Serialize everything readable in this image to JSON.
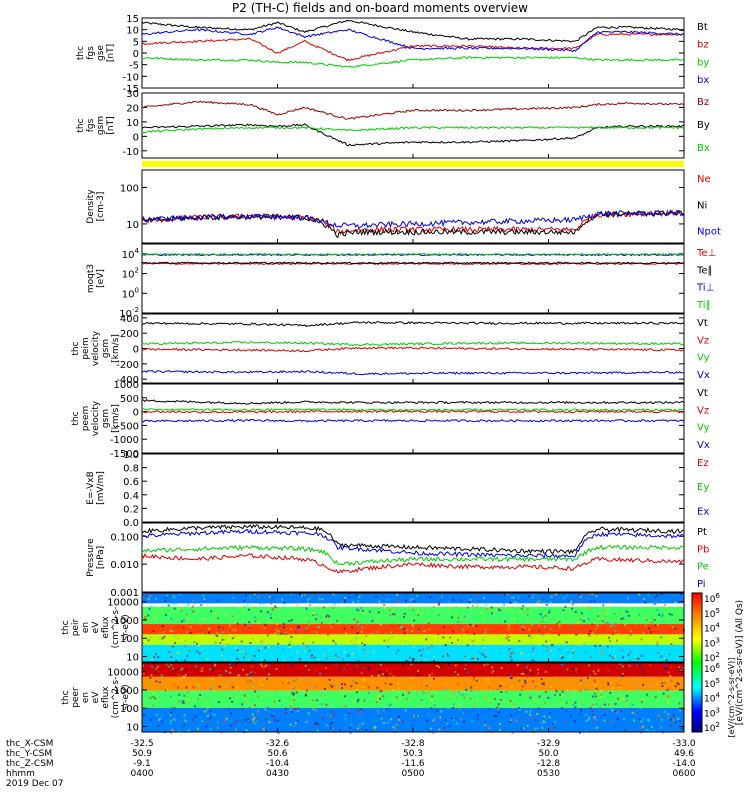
{
  "title": "P2 (TH-C) fields and on-board moments overview",
  "xaxis": {
    "row_labels": [
      "thc_X-CSM",
      "thc_Y-CSM",
      "thc_Z-CSM",
      "hhmm",
      "2019 Dec 07"
    ],
    "ticks": [
      {
        "x": "-32.5",
        "y": "50.9",
        "z": "-9.1",
        "t": "0400"
      },
      {
        "x": "-32.6",
        "y": "50.6",
        "z": "-10.4",
        "t": "0430"
      },
      {
        "x": "-32.8",
        "y": "50.3",
        "z": "-11.6",
        "t": "0500"
      },
      {
        "x": "-32.9",
        "y": "50.0",
        "z": "-12.8",
        "t": "0530"
      },
      {
        "x": "-33.0",
        "y": "49.6",
        "z": "-14.0",
        "t": "0600"
      }
    ]
  },
  "colors": {
    "black": "#000000",
    "red": "#dd0000",
    "green": "#00cc00",
    "blue": "#0000dd",
    "darkred": "#990000",
    "yellow": "#ffff00"
  },
  "chart_data": [
    {
      "type": "line",
      "ylabel": [
        "thc",
        "fgs",
        "gse",
        "[nT]"
      ],
      "ylim": [
        -15,
        15
      ],
      "ticks": [
        "15",
        "10",
        "5",
        "0",
        "-5",
        "-10",
        "-15"
      ],
      "legend": [
        {
          "name": "Bt",
          "color": "#000000"
        },
        {
          "name": "bz",
          "color": "#dd0000"
        },
        {
          "name": "by",
          "color": "#00cc00"
        },
        {
          "name": "bx",
          "color": "#0000dd"
        }
      ],
      "series": [
        {
          "name": "Bt",
          "color": "#000000",
          "t": [
            0,
            0.1,
            0.2,
            0.25,
            0.3,
            0.38,
            0.5,
            0.6,
            0.7,
            0.8,
            0.84,
            0.9,
            1.0
          ],
          "y": [
            13,
            11,
            10,
            13,
            9,
            14,
            9,
            6,
            6,
            5,
            11,
            11,
            10
          ]
        },
        {
          "name": "bz",
          "color": "#dd0000",
          "t": [
            0,
            0.1,
            0.2,
            0.25,
            0.3,
            0.38,
            0.5,
            0.6,
            0.7,
            0.8,
            0.84,
            0.9,
            1.0
          ],
          "y": [
            4,
            5,
            6,
            0,
            5,
            -3,
            3,
            3,
            2,
            2,
            8,
            8,
            8
          ]
        },
        {
          "name": "by",
          "color": "#00cc00",
          "t": [
            0,
            0.1,
            0.2,
            0.25,
            0.3,
            0.38,
            0.5,
            0.6,
            0.7,
            0.8,
            0.84,
            0.9,
            1.0
          ],
          "y": [
            -2,
            -3,
            -3,
            -4,
            -4,
            -6,
            -3,
            -2,
            -2,
            -2,
            -3,
            -3,
            -3
          ]
        },
        {
          "name": "bx",
          "color": "#0000dd",
          "t": [
            0,
            0.1,
            0.2,
            0.25,
            0.3,
            0.38,
            0.5,
            0.6,
            0.7,
            0.8,
            0.84,
            0.9,
            1.0
          ],
          "y": [
            8,
            10,
            8,
            11,
            7,
            10,
            2,
            2,
            2,
            1,
            9,
            9,
            8
          ]
        }
      ]
    },
    {
      "type": "line",
      "ylabel": [
        "thc",
        "fgs",
        "gsm",
        "[nT]"
      ],
      "ylim": [
        -15,
        30
      ],
      "ticks": [
        "30",
        "20",
        "10",
        "0",
        "-10"
      ],
      "legend": [
        {
          "name": "Bz",
          "color": "#990000"
        },
        {
          "name": "By",
          "color": "#000000"
        },
        {
          "name": "Bx",
          "color": "#00cc00"
        }
      ],
      "series": [
        {
          "name": "Bz",
          "color": "#990000",
          "t": [
            0,
            0.1,
            0.2,
            0.25,
            0.3,
            0.38,
            0.5,
            0.6,
            0.7,
            0.8,
            0.84,
            0.9,
            1.0
          ],
          "y": [
            20,
            24,
            22,
            15,
            20,
            12,
            18,
            18,
            19,
            20,
            22,
            23,
            22
          ]
        },
        {
          "name": "By",
          "color": "#000000",
          "t": [
            0,
            0.1,
            0.2,
            0.25,
            0.3,
            0.38,
            0.5,
            0.6,
            0.7,
            0.8,
            0.84,
            0.9,
            1.0
          ],
          "y": [
            6,
            7,
            8,
            7,
            8,
            -6,
            -4,
            -4,
            -3,
            -1,
            6,
            7,
            7
          ]
        },
        {
          "name": "Bx",
          "color": "#00cc00",
          "t": [
            0,
            0.1,
            0.2,
            0.25,
            0.3,
            0.38,
            0.5,
            0.6,
            0.7,
            0.8,
            0.84,
            0.9,
            1.0
          ],
          "y": [
            3,
            5,
            6,
            6,
            6,
            4,
            6,
            6,
            6,
            6,
            6,
            6,
            6
          ]
        }
      ]
    },
    {
      "type": "line",
      "log": true,
      "ylabel": [
        "Density",
        "[cm-3]"
      ],
      "ylim": [
        3,
        300
      ],
      "ticks": [
        "100",
        "10"
      ],
      "legend": [
        {
          "name": "Ne",
          "color": "#dd0000"
        },
        {
          "name": "Ni",
          "color": "#000000"
        },
        {
          "name": "Npot",
          "color": "#0000dd"
        }
      ],
      "series": [
        {
          "name": "Ne",
          "color": "#dd0000",
          "t": [
            0,
            0.1,
            0.2,
            0.3,
            0.33,
            0.36,
            0.4,
            0.5,
            0.6,
            0.7,
            0.8,
            0.84,
            1.0
          ],
          "y": [
            12,
            15,
            16,
            15,
            12,
            6,
            7,
            7,
            7,
            7,
            7,
            18,
            20
          ]
        },
        {
          "name": "Ni",
          "color": "#000000",
          "t": [
            0,
            0.1,
            0.2,
            0.3,
            0.33,
            0.36,
            0.4,
            0.5,
            0.6,
            0.7,
            0.8,
            0.84,
            1.0
          ],
          "y": [
            12,
            15,
            16,
            15,
            11,
            5,
            6,
            6,
            6,
            6,
            6,
            18,
            20
          ]
        },
        {
          "name": "Npot",
          "color": "#0000dd",
          "t": [
            0,
            0.1,
            0.2,
            0.3,
            0.33,
            0.36,
            0.4,
            0.5,
            0.6,
            0.7,
            0.8,
            0.84,
            1.0
          ],
          "y": [
            13,
            15,
            16,
            15,
            12,
            9,
            9,
            10,
            11,
            12,
            13,
            19,
            20
          ]
        }
      ]
    },
    {
      "type": "line",
      "log": true,
      "ylabel": [
        "moqt3",
        "[eV]"
      ],
      "ylim": [
        0.01,
        100000
      ],
      "ticks": [
        "10^4",
        "10^2",
        "10^0",
        "10^-2"
      ],
      "legend": [
        {
          "name": "Te⊥",
          "color": "#dd0000"
        },
        {
          "name": "Te∥",
          "color": "#000000"
        },
        {
          "name": "Ti⊥",
          "color": "#0000dd"
        },
        {
          "name": "Ti∥",
          "color": "#00cc00"
        }
      ],
      "series": [
        {
          "name": "Te⊥",
          "color": "#dd0000",
          "t": [
            0,
            0.5,
            1.0
          ],
          "y": [
            1000,
            1000,
            1000
          ]
        },
        {
          "name": "Te∥",
          "color": "#000000",
          "t": [
            0,
            0.5,
            1.0
          ],
          "y": [
            1200,
            1200,
            1200
          ]
        },
        {
          "name": "Ti⊥",
          "color": "#0000dd",
          "t": [
            0,
            0.5,
            1.0
          ],
          "y": [
            8000,
            8000,
            8000
          ]
        },
        {
          "name": "Ti∥",
          "color": "#00cc00",
          "t": [
            0,
            0.5,
            1.0
          ],
          "y": [
            9000,
            9000,
            9000
          ]
        }
      ]
    },
    {
      "type": "line",
      "ylabel": [
        "thc",
        "peim",
        "velocity",
        "gsm",
        "[km/s]"
      ],
      "ylim": [
        -450,
        450
      ],
      "ticks": [
        "400",
        "200",
        "0",
        "-200",
        "-400"
      ],
      "legend": [
        {
          "name": "Vt",
          "color": "#000000"
        },
        {
          "name": "Vz",
          "color": "#dd0000"
        },
        {
          "name": "Vy",
          "color": "#00cc00"
        },
        {
          "name": "Vx",
          "color": "#0000dd"
        }
      ],
      "series": [
        {
          "name": "Vt",
          "color": "#000000",
          "t": [
            0,
            0.2,
            0.3,
            0.4,
            0.6,
            0.8,
            1.0
          ],
          "y": [
            330,
            320,
            300,
            340,
            330,
            330,
            330
          ]
        },
        {
          "name": "Vz",
          "color": "#dd0000",
          "t": [
            0,
            0.2,
            0.3,
            0.4,
            0.6,
            0.8,
            1.0
          ],
          "y": [
            -10,
            -20,
            -30,
            10,
            0,
            -10,
            -20
          ]
        },
        {
          "name": "Vy",
          "color": "#00cc00",
          "t": [
            0,
            0.2,
            0.3,
            0.4,
            0.6,
            0.8,
            1.0
          ],
          "y": [
            60,
            80,
            70,
            50,
            70,
            70,
            60
          ]
        },
        {
          "name": "Vx",
          "color": "#0000dd",
          "t": [
            0,
            0.2,
            0.3,
            0.4,
            0.6,
            0.8,
            1.0
          ],
          "y": [
            -300,
            -310,
            -300,
            -330,
            -320,
            -320,
            -310
          ]
        }
      ]
    },
    {
      "type": "line",
      "ylabel": [
        "thc",
        "peem",
        "velocity",
        "gsm",
        "[km/s]"
      ],
      "ylim": [
        -1500,
        1000
      ],
      "ticks": [
        "1000",
        "500",
        "0",
        "-500",
        "-1000",
        "-1500"
      ],
      "legend": [
        {
          "name": "Vt",
          "color": "#000000"
        },
        {
          "name": "Vz",
          "color": "#dd0000"
        },
        {
          "name": "Vy",
          "color": "#00cc00"
        },
        {
          "name": "Vx",
          "color": "#0000dd"
        }
      ],
      "series": [
        {
          "name": "Vt",
          "color": "#000000",
          "t": [
            0,
            0.2,
            0.3,
            0.4,
            0.6,
            0.8,
            1.0
          ],
          "y": [
            400,
            300,
            350,
            330,
            330,
            330,
            330
          ]
        },
        {
          "name": "Vz",
          "color": "#dd0000",
          "t": [
            0,
            0.2,
            0.3,
            0.4,
            0.6,
            0.8,
            1.0
          ],
          "y": [
            0,
            -20,
            0,
            10,
            0,
            0,
            0
          ]
        },
        {
          "name": "Vy",
          "color": "#00cc00",
          "t": [
            0,
            0.2,
            0.3,
            0.4,
            0.6,
            0.8,
            1.0
          ],
          "y": [
            80,
            60,
            80,
            60,
            60,
            60,
            60
          ]
        },
        {
          "name": "Vx",
          "color": "#0000dd",
          "t": [
            0,
            0.2,
            0.3,
            0.4,
            0.6,
            0.8,
            1.0
          ],
          "y": [
            -350,
            -320,
            -340,
            -330,
            -330,
            -330,
            -330
          ]
        }
      ]
    },
    {
      "type": "line",
      "ylabel": [
        "E=-VxB",
        "[mV/m]"
      ],
      "ylim": [
        0,
        1
      ],
      "ticks": [
        "1.0",
        "0.8",
        "0.6",
        "0.4",
        "0.2",
        "0.0"
      ],
      "legend": [
        {
          "name": "Ez",
          "color": "#dd0000"
        },
        {
          "name": "Ey",
          "color": "#00cc00"
        },
        {
          "name": "Ex",
          "color": "#0000dd"
        }
      ],
      "series": []
    },
    {
      "type": "line",
      "log": true,
      "ylabel": [
        "Pressure",
        "[nPa]"
      ],
      "ylim": [
        0.001,
        0.3
      ],
      "ticks": [
        "0.100",
        "0.010",
        "0.001"
      ],
      "legend": [
        {
          "name": "Pt",
          "color": "#000000"
        },
        {
          "name": "Pb",
          "color": "#dd0000"
        },
        {
          "name": "Pe",
          "color": "#00cc00"
        },
        {
          "name": "Pi",
          "color": "#0000dd"
        }
      ],
      "series": [
        {
          "name": "Pt",
          "color": "#000000",
          "t": [
            0,
            0.1,
            0.2,
            0.3,
            0.33,
            0.36,
            0.5,
            0.6,
            0.7,
            0.8,
            0.84,
            1.0
          ],
          "y": [
            0.15,
            0.2,
            0.22,
            0.2,
            0.18,
            0.05,
            0.04,
            0.035,
            0.03,
            0.028,
            0.18,
            0.15
          ]
        },
        {
          "name": "Pb",
          "color": "#dd0000",
          "t": [
            0,
            0.1,
            0.2,
            0.3,
            0.33,
            0.36,
            0.5,
            0.6,
            0.7,
            0.8,
            0.84,
            1.0
          ],
          "y": [
            0.02,
            0.015,
            0.02,
            0.015,
            0.01,
            0.005,
            0.01,
            0.008,
            0.008,
            0.007,
            0.015,
            0.012
          ]
        },
        {
          "name": "Pe",
          "color": "#00cc00",
          "t": [
            0,
            0.1,
            0.2,
            0.3,
            0.33,
            0.36,
            0.5,
            0.6,
            0.7,
            0.8,
            0.84,
            1.0
          ],
          "y": [
            0.03,
            0.035,
            0.04,
            0.035,
            0.03,
            0.01,
            0.015,
            0.015,
            0.015,
            0.015,
            0.04,
            0.04
          ]
        },
        {
          "name": "Pi",
          "color": "#0000dd",
          "t": [
            0,
            0.1,
            0.2,
            0.3,
            0.33,
            0.36,
            0.5,
            0.6,
            0.7,
            0.8,
            0.84,
            1.0
          ],
          "y": [
            0.1,
            0.13,
            0.15,
            0.13,
            0.12,
            0.04,
            0.025,
            0.022,
            0.02,
            0.02,
            0.12,
            0.1
          ]
        }
      ]
    },
    {
      "type": "heatmap",
      "log": true,
      "ylabel": [
        "thc",
        "peir",
        "en",
        "eV",
        "eflux",
        "(cm^2-s-",
        "sr-eV)"
      ],
      "ylim": [
        5,
        30000
      ],
      "ticks": [
        "10000",
        "1000",
        "100",
        "10"
      ],
      "levels": [
        [
          0.0,
          0.15,
          0.2
        ],
        [
          0.2,
          0.45,
          0.4
        ],
        [
          0.45,
          0.6,
          0.85
        ],
        [
          0.6,
          0.75,
          0.6
        ],
        [
          0.75,
          1.0,
          0.35
        ]
      ]
    },
    {
      "type": "heatmap",
      "log": true,
      "ylabel": [
        "thc",
        "peer",
        "en",
        "eV",
        "eflux",
        "(cm^2-s-",
        "sr-eV)"
      ],
      "ylim": [
        5,
        30000
      ],
      "ticks": [
        "10000",
        "1000",
        "100",
        "10"
      ],
      "levels": [
        [
          0.0,
          0.2,
          0.95
        ],
        [
          0.2,
          0.4,
          0.8
        ],
        [
          0.4,
          0.65,
          0.4
        ],
        [
          0.65,
          1.0,
          0.2
        ]
      ]
    }
  ],
  "colorbar": {
    "ticks": [
      "10^6",
      "10^5",
      "10^4",
      "10^3",
      "10^2"
    ],
    "label": "[eV/(cm^2-s-sr-eV)] (All Qs)",
    "label2": "[eV/(cm^2-s-sr-eV)]"
  }
}
